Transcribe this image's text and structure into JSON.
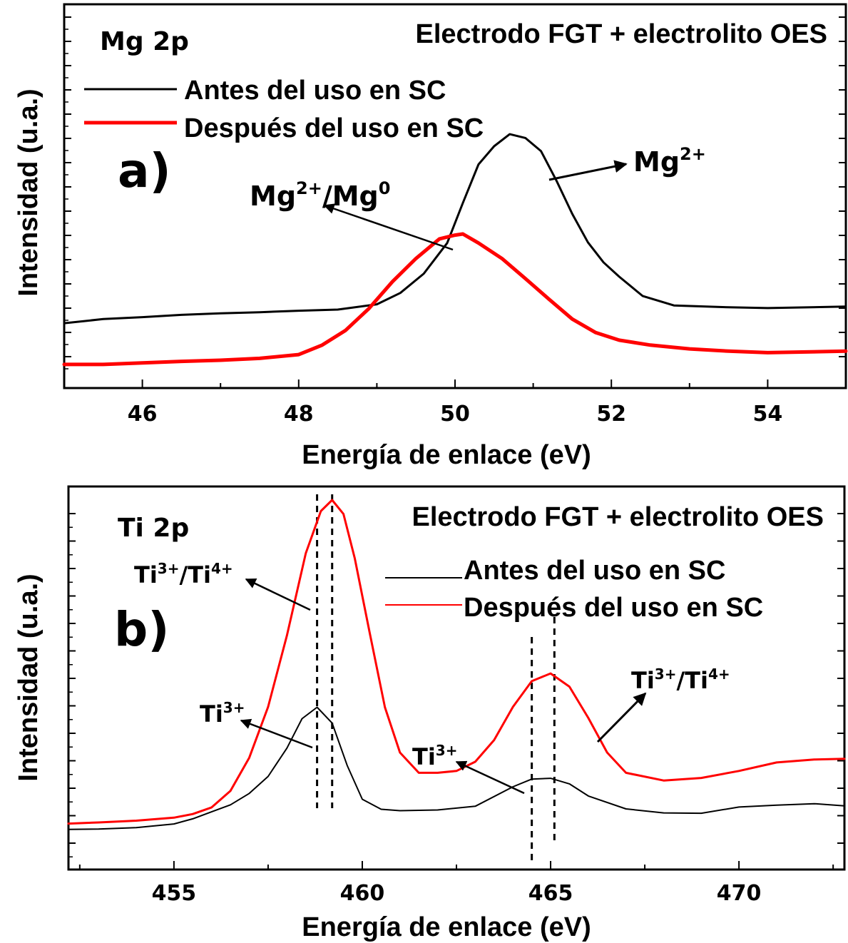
{
  "chart_data": [
    {
      "type": "line",
      "panel_label": "a)",
      "element_label": "Mg 2p",
      "title": "Electrodo FGT + electrolito OES",
      "xlabel": "Energía de enlace (eV)",
      "ylabel": "Intensidad (u.a.)",
      "xlim": [
        45,
        55
      ],
      "ylim": [
        0,
        100
      ],
      "xticks": [
        46,
        48,
        50,
        52,
        54
      ],
      "grid": false,
      "legend_position": "top-left",
      "series": [
        {
          "name": "Antes del uso en SC",
          "color": "#000000",
          "x": [
            45,
            45.5,
            46,
            46.5,
            47,
            47.5,
            48,
            48.5,
            49,
            49.3,
            49.6,
            49.9,
            50.1,
            50.3,
            50.5,
            50.7,
            50.9,
            51.1,
            51.3,
            51.5,
            51.7,
            51.9,
            52.1,
            52.4,
            52.8,
            53.5,
            54,
            55
          ],
          "y": [
            16.4,
            17.5,
            18,
            18.6,
            19,
            19.3,
            19.7,
            20,
            21.4,
            24.4,
            29.5,
            37.6,
            48.2,
            58.4,
            63.2,
            66.4,
            65.4,
            61.9,
            54,
            45.3,
            37.8,
            32.5,
            28.7,
            23.6,
            21.1,
            20.6,
            20.4,
            20.8
          ]
        },
        {
          "name": "Después del uso en SC",
          "color": "#ff0000",
          "x": [
            45,
            45.5,
            46,
            46.5,
            47,
            47.5,
            48,
            48.3,
            48.6,
            48.9,
            49.2,
            49.5,
            49.8,
            50,
            50.1,
            50.3,
            50.6,
            50.9,
            51.2,
            51.5,
            51.8,
            52.1,
            52.5,
            53,
            53.5,
            54,
            55
          ],
          "y": [
            5.5,
            5.5,
            5.9,
            6.3,
            6.6,
            7.1,
            8.1,
            10.6,
            14.5,
            20.3,
            27.4,
            33.5,
            38.7,
            39.7,
            40,
            37.6,
            33.5,
            28.2,
            22.8,
            17.5,
            13.9,
            11.9,
            10.6,
            9.6,
            9,
            8.6,
            9
          ]
        }
      ],
      "annotations": [
        {
          "base": "Mg",
          "sup": "2+",
          "points_to": [
            50.7,
            66.4
          ]
        },
        {
          "base": "Mg",
          "sup": "2+",
          "mid": "/Mg",
          "sup2": "0",
          "points_to": [
            50.1,
            40
          ]
        }
      ]
    },
    {
      "type": "line",
      "panel_label": "b)",
      "element_label": "Ti 2p",
      "title": "Electrodo FGT + electrolito OES",
      "xlabel": "Energía de enlace (eV)",
      "ylabel": "Intensidad (u.a.)",
      "xlim": [
        452.2,
        472.8
      ],
      "ylim": [
        0,
        100
      ],
      "xticks": [
        455,
        460,
        465,
        470
      ],
      "grid": false,
      "legend_position": "top-right",
      "vlines": [
        458.8,
        459.2,
        464.5,
        465.1
      ],
      "series": [
        {
          "name": "Antes del uso en SC",
          "color": "#000000",
          "x": [
            452.2,
            453,
            454,
            455,
            455.5,
            456,
            456.5,
            457,
            457.5,
            458,
            458.4,
            458.8,
            459.2,
            459.6,
            460,
            460.5,
            461,
            462,
            463,
            464,
            464.5,
            465,
            465.5,
            466,
            467,
            468,
            469,
            470,
            471,
            472,
            472.8
          ],
          "y": [
            7.2,
            7.3,
            7.7,
            8.7,
            10.1,
            12,
            13.9,
            17,
            21.6,
            29.3,
            37.3,
            40.4,
            36.1,
            24.6,
            15.4,
            12.7,
            12.3,
            12.5,
            13.5,
            18.8,
            20.9,
            21.1,
            19.6,
            16.3,
            12.8,
            11.7,
            11.6,
            13.3,
            13.8,
            14.2,
            13.6
          ]
        },
        {
          "name": "Después del uso en SC",
          "color": "#ff0000",
          "x": [
            452.2,
            453,
            454,
            455,
            455.5,
            456,
            456.5,
            457,
            457.5,
            458,
            458.5,
            458.9,
            459.2,
            459.5,
            459.8,
            460.2,
            460.6,
            461,
            461.5,
            462,
            462.5,
            463,
            463.5,
            464,
            464.5,
            465,
            465.5,
            466,
            466.5,
            467,
            468,
            469,
            470,
            471,
            472,
            472.8
          ],
          "y": [
            8.8,
            9.1,
            9.6,
            10.4,
            11.4,
            13.2,
            17.7,
            26.7,
            40.5,
            59.9,
            82.2,
            93.7,
            96.7,
            92.9,
            80.9,
            60.5,
            40.4,
            28.1,
            22.6,
            22.6,
            23.1,
            25.6,
            31.5,
            40.5,
            47.5,
            49.6,
            46,
            37.5,
            28.1,
            22.6,
            20.5,
            21.2,
            23.1,
            25.4,
            26.2,
            26.4
          ]
        }
      ],
      "annotations": [
        {
          "base": "Ti",
          "sup": "3+",
          "mid": "/Ti",
          "sup2": "4+",
          "points_to": [
            458.6,
            63
          ]
        },
        {
          "base": "Ti",
          "sup": "3+",
          "points_to": [
            458.6,
            38
          ]
        },
        {
          "base": "Ti",
          "sup": "3+",
          "points_to": [
            464.2,
            21
          ]
        },
        {
          "base": "Ti",
          "sup": "3+",
          "mid": "/Ti",
          "sup2": "4+",
          "points_to": [
            465.6,
            38
          ]
        }
      ]
    }
  ]
}
